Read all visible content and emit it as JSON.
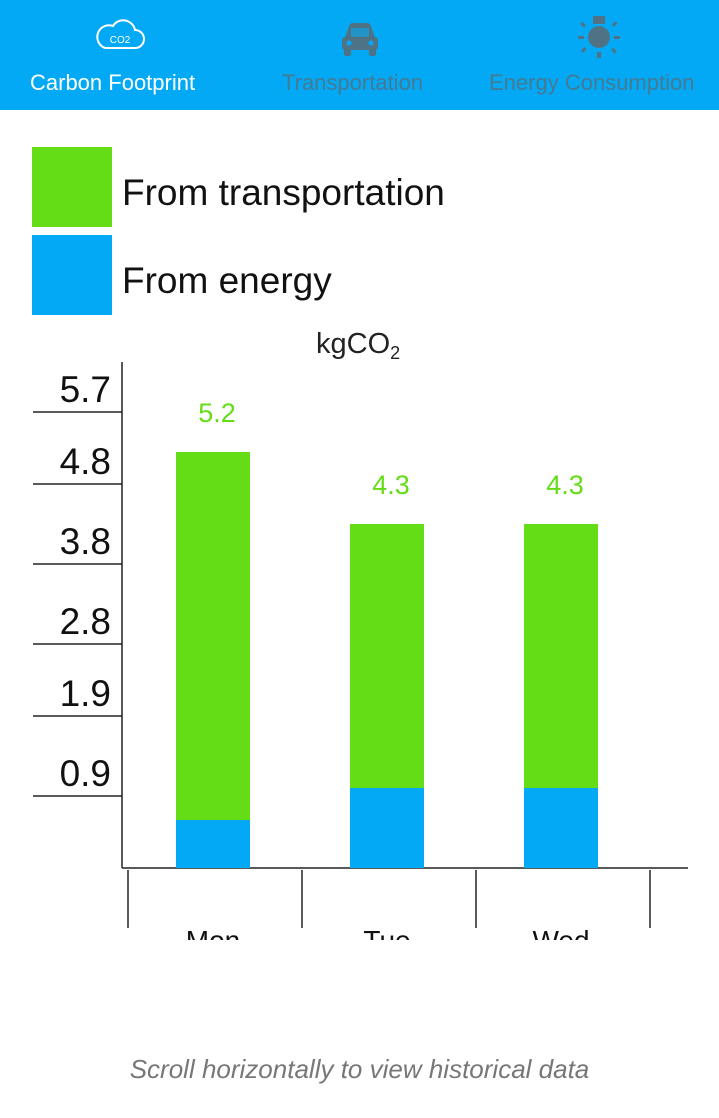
{
  "tabs": [
    {
      "label": "Carbon Footprint",
      "icon": "co2-cloud-icon",
      "active": true
    },
    {
      "label": "Transportation",
      "icon": "car-icon",
      "active": false
    },
    {
      "label": "Energy Consumption",
      "icon": "lightbulb-icon",
      "active": false
    }
  ],
  "colors": {
    "appbar": "#03A9F4",
    "transportation": "#64DD17",
    "energy": "#03A9F4",
    "value_label": "#64DD17",
    "axis": "#222222"
  },
  "legend": [
    {
      "label": "From transportation",
      "color": "#64DD17"
    },
    {
      "label": "From energy",
      "color": "#03A9F4"
    }
  ],
  "chart_data": {
    "type": "bar",
    "stacked": true,
    "unit_label": "kgCO₂",
    "categories": [
      "Mon",
      "Tue",
      "Wed"
    ],
    "series": [
      {
        "name": "From energy",
        "values": [
          0.6,
          1.0,
          1.0
        ]
      },
      {
        "name": "From transportation",
        "values": [
          4.6,
          3.3,
          3.3
        ]
      }
    ],
    "totals": [
      "5.2",
      "4.3",
      "4.3"
    ],
    "y_ticks": [
      "5.7",
      "4.8",
      "3.8",
      "2.8",
      "1.9",
      "0.9"
    ],
    "ylim": [
      0,
      6.3
    ],
    "grid": false
  },
  "footer": {
    "hint": "Scroll horizontally to view historical data"
  }
}
